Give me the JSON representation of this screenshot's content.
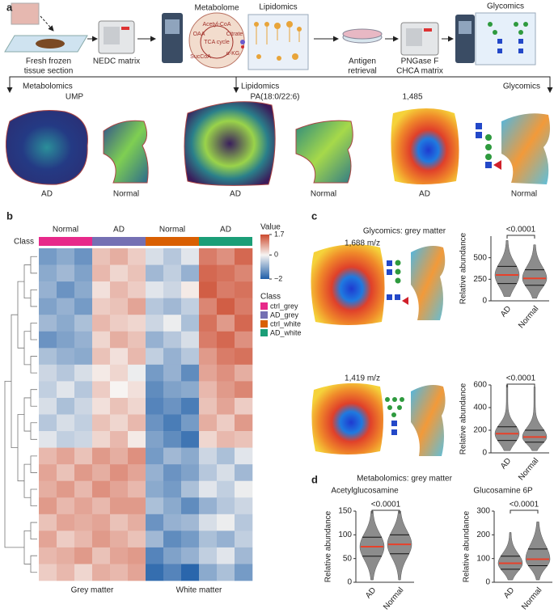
{
  "panel_labels": [
    "a",
    "b",
    "c",
    "d"
  ],
  "workflow": {
    "steps": [
      {
        "label": [
          "Fresh frozen",
          "tissue section"
        ]
      },
      {
        "label": [
          "NEDC matrix"
        ]
      },
      {
        "title": "Metabolome",
        "tca": [
          "Acetyl-CoA",
          "Citrate",
          "α-KG",
          "SucCoA",
          "OAA",
          "TCA cycle"
        ]
      },
      {
        "title": "Lipidomics"
      },
      {
        "label": [
          "Antigen",
          "retrieval"
        ]
      },
      {
        "label": [
          "PNGase F",
          "CHCA matrix"
        ]
      },
      {
        "title": "Glycomics"
      }
    ],
    "branches": [
      {
        "name": "Metabolomics",
        "image_title": "UMP",
        "samples": [
          "AD",
          "Normal"
        ]
      },
      {
        "name": "Lipidomics",
        "image_title": "PA(18:0/22:6)",
        "samples": [
          "AD",
          "Normal"
        ]
      },
      {
        "name": "Glycomics",
        "image_title": "1,485",
        "samples": [
          "AD",
          "Normal"
        ]
      }
    ]
  },
  "heatmap": {
    "class_label": "Class",
    "groups": [
      {
        "header": "Normal",
        "class": "ctrl_grey",
        "color": "#e7298a"
      },
      {
        "header": "AD",
        "class": "AD_grey",
        "color": "#7570b3"
      },
      {
        "header": "Normal",
        "class": "ctrl_white",
        "color": "#d95f02"
      },
      {
        "header": "AD",
        "class": "AD_white",
        "color": "#1b9e77"
      }
    ],
    "value_legend": {
      "title": "Value",
      "ticks": [
        1.7,
        0,
        {
          "value": -2,
          "label": "−2"
        }
      ]
    },
    "vlim": [
      -2,
      1.7
    ],
    "colors": {
      "low": "#1f5fa8",
      "mid": "#f7f4f2",
      "high": "#cc4a2e"
    },
    "bottom_labels": [
      "Grey matter",
      "White matter"
    ],
    "rows": [
      [
        -1.2,
        -1.0,
        -1.3,
        0.5,
        0.7,
        0.4,
        -0.3,
        -0.6,
        -0.2,
        1.2,
        1.0,
        1.4
      ],
      [
        -1.0,
        -0.8,
        -1.1,
        0.6,
        0.3,
        0.5,
        -0.8,
        -0.5,
        -0.9,
        1.4,
        1.3,
        1.1
      ],
      [
        -0.9,
        -1.3,
        -1.0,
        0.2,
        0.6,
        0.4,
        -0.2,
        -0.4,
        0.1,
        1.5,
        1.2,
        1.3
      ],
      [
        -1.1,
        -0.9,
        -1.2,
        0.4,
        0.5,
        0.8,
        -0.6,
        -0.8,
        -0.5,
        1.1,
        1.5,
        1.2
      ],
      [
        -0.8,
        -1.0,
        -0.7,
        0.6,
        0.4,
        0.3,
        -0.4,
        -0.1,
        -0.7,
        1.3,
        0.9,
        1.4
      ],
      [
        -1.3,
        -1.1,
        -0.9,
        0.3,
        0.7,
        0.5,
        -0.9,
        -0.6,
        -0.3,
        1.2,
        1.4,
        1.0
      ],
      [
        -0.7,
        -0.9,
        -1.0,
        0.5,
        0.2,
        0.6,
        -0.5,
        -0.9,
        -0.6,
        0.9,
        1.2,
        1.3
      ],
      [
        -0.4,
        -0.6,
        -0.3,
        0.1,
        0.3,
        -0.1,
        -1.2,
        -0.9,
        -1.4,
        0.8,
        1.0,
        0.7
      ],
      [
        -0.5,
        -0.2,
        -0.6,
        0.4,
        0.0,
        0.2,
        -1.4,
        -1.1,
        -1.0,
        0.6,
        0.9,
        1.1
      ],
      [
        -0.3,
        -0.7,
        -0.4,
        0.2,
        0.5,
        0.3,
        -1.5,
        -1.3,
        -1.6,
        0.5,
        0.8,
        0.4
      ],
      [
        -0.6,
        -0.3,
        -0.5,
        0.5,
        0.3,
        0.6,
        -1.3,
        -1.6,
        -1.2,
        0.7,
        0.4,
        0.9
      ],
      [
        -0.2,
        -0.5,
        -0.4,
        0.3,
        0.6,
        0.1,
        -1.1,
        -1.4,
        -1.7,
        0.3,
        0.6,
        0.5
      ],
      [
        0.6,
        0.8,
        0.5,
        0.9,
        0.7,
        1.0,
        -1.2,
        -0.8,
        -1.0,
        -0.4,
        -0.7,
        -0.2
      ],
      [
        0.8,
        0.5,
        0.9,
        0.7,
        1.0,
        0.8,
        -0.9,
        -1.3,
        -1.1,
        -0.6,
        -0.3,
        -0.8
      ],
      [
        0.7,
        0.9,
        0.6,
        1.0,
        0.8,
        0.6,
        -1.0,
        -1.2,
        -0.7,
        -0.2,
        -0.5,
        -0.1
      ],
      [
        0.9,
        0.6,
        0.8,
        0.6,
        0.9,
        0.9,
        -0.7,
        -1.0,
        -1.4,
        -0.9,
        -0.6,
        -0.4
      ],
      [
        0.5,
        0.8,
        0.7,
        0.8,
        0.5,
        0.7,
        -1.3,
        -0.9,
        -0.8,
        -0.3,
        -0.1,
        -0.6
      ],
      [
        0.8,
        0.4,
        0.6,
        0.9,
        0.7,
        0.5,
        -0.8,
        -1.4,
        -1.2,
        -0.7,
        -0.9,
        -0.5
      ],
      [
        0.6,
        0.7,
        0.9,
        0.5,
        0.8,
        0.9,
        -1.5,
        -1.1,
        -0.9,
        -0.5,
        -0.2,
        -0.8
      ],
      [
        0.4,
        0.6,
        0.3,
        0.7,
        0.6,
        0.8,
        -1.8,
        -1.5,
        -1.9,
        -1.0,
        -0.7,
        -1.2
      ]
    ]
  },
  "glycomics": {
    "title": "Glycomics: grey matter",
    "plots": [
      {
        "mz_label": "1,688 m/z",
        "ylabel": "Relative abundance",
        "ylim": [
          0,
          750
        ],
        "yticks": [
          0,
          250,
          500
        ],
        "categories": [
          "AD",
          "Normal"
        ],
        "p_value": "<0.0001",
        "medians": [
          300,
          260
        ],
        "quartiles": [
          [
            200,
            400
          ],
          [
            180,
            360
          ]
        ],
        "ranges": [
          [
            50,
            700
          ],
          [
            30,
            650
          ]
        ]
      },
      {
        "mz_label": "1,419 m/z",
        "ylabel": "Relative abundance",
        "ylim": [
          0,
          600
        ],
        "yticks": [
          0,
          200,
          400,
          600
        ],
        "categories": [
          "AD",
          "Normal"
        ],
        "p_value": "<0.0001",
        "medians": [
          170,
          140
        ],
        "quartiles": [
          [
            110,
            230
          ],
          [
            95,
            200
          ]
        ],
        "ranges": [
          [
            20,
            600
          ],
          [
            20,
            580
          ]
        ]
      }
    ]
  },
  "metabolomics": {
    "title": "Metabolomics: grey matter",
    "plots": [
      {
        "title": "Acetylglucosamine",
        "ylabel": "Relative abundance",
        "ylim": [
          0,
          150
        ],
        "yticks": [
          0,
          50,
          100,
          150
        ],
        "categories": [
          "AD",
          "Normal"
        ],
        "p_value": "<0.0001",
        "medians": [
          75,
          80
        ],
        "quartiles": [
          [
            55,
            95
          ],
          [
            60,
            100
          ]
        ],
        "ranges": [
          [
            5,
            150
          ],
          [
            5,
            150
          ]
        ]
      },
      {
        "title": "Glucosamine 6P",
        "ylabel": "Relative abundance",
        "ylim": [
          0,
          300
        ],
        "yticks": [
          0,
          100,
          200,
          300
        ],
        "categories": [
          "AD",
          "Normal"
        ],
        "p_value": "<0.0001",
        "medians": [
          80,
          97
        ],
        "quartiles": [
          [
            55,
            110
          ],
          [
            70,
            140
          ]
        ],
        "ranges": [
          [
            10,
            210
          ],
          [
            10,
            255
          ]
        ]
      }
    ]
  }
}
